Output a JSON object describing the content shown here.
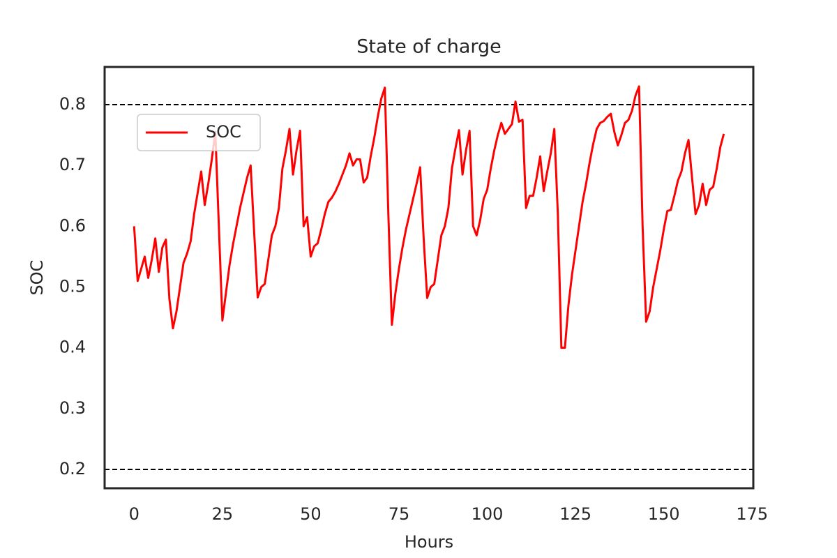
{
  "chart_data": {
    "type": "line",
    "title": "State of charge",
    "x_label": "Hours",
    "y_label": "SOC",
    "x": [
      0,
      1,
      2,
      3,
      4,
      5,
      6,
      7,
      8,
      9,
      10,
      11,
      12,
      13,
      14,
      15,
      16,
      17,
      18,
      19,
      20,
      21,
      22,
      23,
      24,
      25,
      26,
      27,
      28,
      29,
      30,
      31,
      32,
      33,
      34,
      35,
      36,
      37,
      38,
      39,
      40,
      41,
      42,
      43,
      44,
      45,
      46,
      47,
      48,
      49,
      50,
      51,
      52,
      53,
      54,
      55,
      56,
      57,
      58,
      59,
      60,
      61,
      62,
      63,
      64,
      65,
      66,
      67,
      68,
      69,
      70,
      71,
      72,
      73,
      74,
      75,
      76,
      77,
      78,
      79,
      80,
      81,
      82,
      83,
      84,
      85,
      86,
      87,
      88,
      89,
      90,
      91,
      92,
      93,
      94,
      95,
      96,
      97,
      98,
      99,
      100,
      101,
      102,
      103,
      104,
      105,
      106,
      107,
      108,
      109,
      110,
      111,
      112,
      113,
      114,
      115,
      116,
      117,
      118,
      119,
      120,
      121,
      122,
      123,
      124,
      125,
      126,
      127,
      128,
      129,
      130,
      131,
      132,
      133,
      134,
      135,
      136,
      137,
      138,
      139,
      140,
      141,
      142,
      143,
      144,
      145,
      146,
      147,
      148,
      149,
      150,
      151,
      152,
      153,
      154,
      155,
      156,
      157,
      158,
      159,
      160,
      161,
      162,
      163,
      164,
      165,
      166,
      167
    ],
    "series": [
      {
        "name": "SOC",
        "color": "#ff0000",
        "values": [
          0.6,
          0.51,
          0.53,
          0.55,
          0.515,
          0.545,
          0.58,
          0.525,
          0.565,
          0.578,
          0.48,
          0.432,
          0.46,
          0.5,
          0.54,
          0.555,
          0.575,
          0.62,
          0.655,
          0.69,
          0.635,
          0.67,
          0.71,
          0.755,
          0.6,
          0.445,
          0.49,
          0.535,
          0.57,
          0.6,
          0.63,
          0.655,
          0.68,
          0.7,
          0.59,
          0.483,
          0.5,
          0.505,
          0.545,
          0.585,
          0.6,
          0.63,
          0.695,
          0.725,
          0.76,
          0.685,
          0.725,
          0.757,
          0.6,
          0.615,
          0.55,
          0.567,
          0.572,
          0.595,
          0.62,
          0.64,
          0.647,
          0.657,
          0.67,
          0.685,
          0.7,
          0.72,
          0.7,
          0.71,
          0.71,
          0.672,
          0.68,
          0.715,
          0.745,
          0.78,
          0.81,
          0.828,
          0.62,
          0.438,
          0.49,
          0.53,
          0.565,
          0.595,
          0.62,
          0.645,
          0.67,
          0.697,
          0.58,
          0.482,
          0.5,
          0.505,
          0.545,
          0.585,
          0.6,
          0.63,
          0.695,
          0.728,
          0.758,
          0.685,
          0.725,
          0.757,
          0.6,
          0.585,
          0.61,
          0.645,
          0.66,
          0.695,
          0.725,
          0.75,
          0.77,
          0.752,
          0.76,
          0.768,
          0.805,
          0.772,
          0.775,
          0.63,
          0.65,
          0.65,
          0.68,
          0.715,
          0.658,
          0.69,
          0.72,
          0.76,
          0.62,
          0.4,
          0.4,
          0.47,
          0.52,
          0.56,
          0.6,
          0.64,
          0.67,
          0.705,
          0.735,
          0.76,
          0.77,
          0.773,
          0.78,
          0.785,
          0.755,
          0.733,
          0.75,
          0.77,
          0.775,
          0.79,
          0.815,
          0.83,
          0.6,
          0.443,
          0.46,
          0.5,
          0.53,
          0.56,
          0.595,
          0.625,
          0.627,
          0.65,
          0.675,
          0.69,
          0.72,
          0.742,
          0.68,
          0.62,
          0.635,
          0.67,
          0.635,
          0.66,
          0.665,
          0.695,
          0.73,
          0.752
        ]
      }
    ],
    "hlines": [
      0.2,
      0.8
    ],
    "hline_color": "#000000",
    "hline_style": "dashed",
    "xlim": [
      -8.35,
      175.35
    ],
    "xticks": [
      0,
      25,
      50,
      75,
      100,
      125,
      150,
      175
    ],
    "ylim": [
      0.169,
      0.862
    ],
    "yticks": [
      0.2,
      0.3,
      0.4,
      0.5,
      0.6,
      0.7,
      0.8
    ],
    "grid": false,
    "legend": "upper left"
  }
}
